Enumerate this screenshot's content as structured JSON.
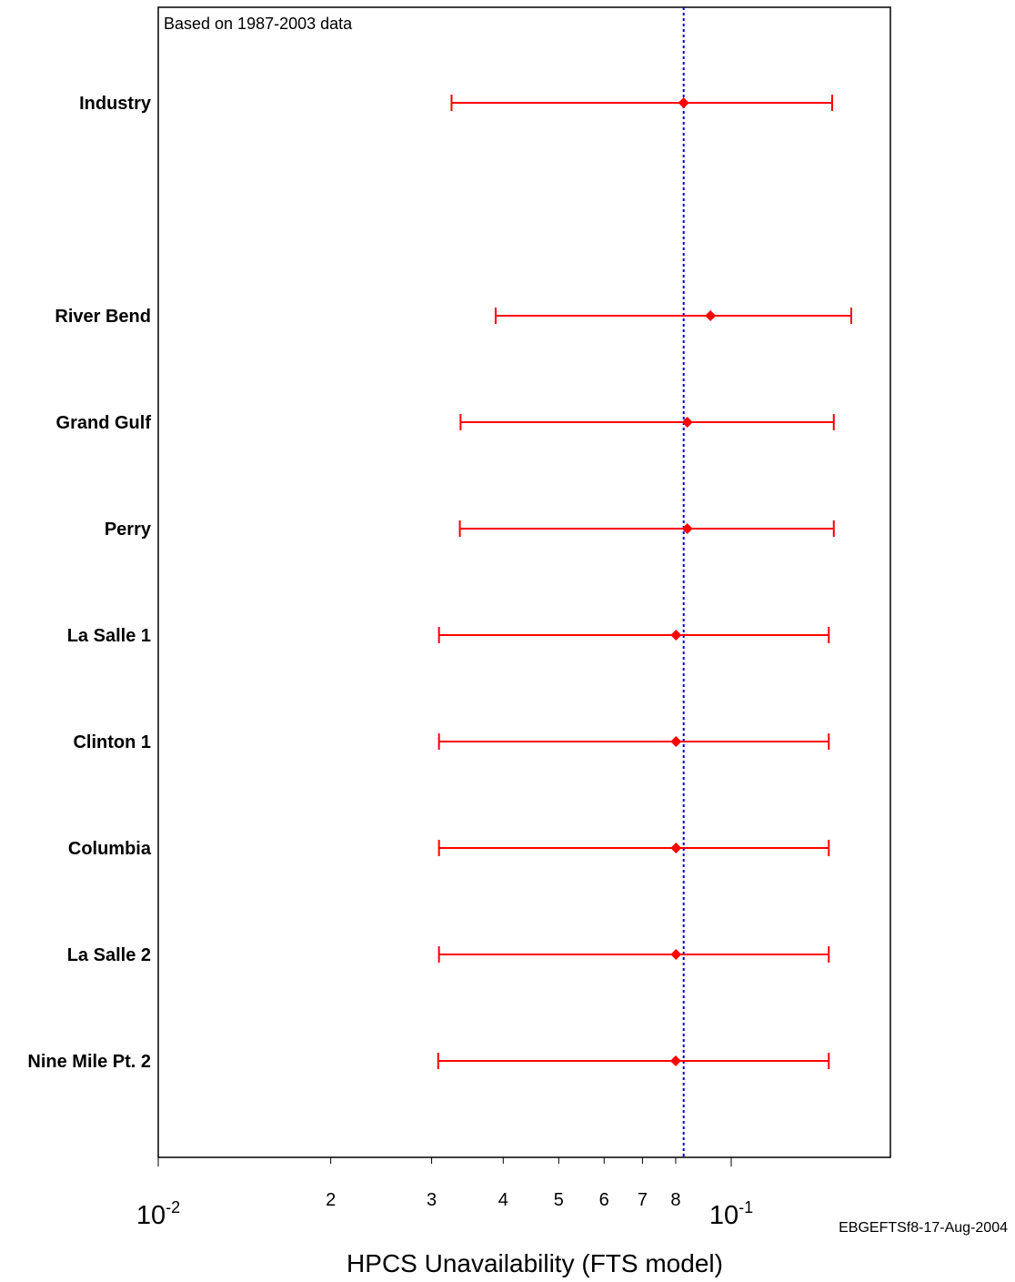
{
  "chart_data": {
    "type": "forest",
    "annotation": "Based on 1987-2003 data",
    "xlabel": "HPCS Unavailability (FTS model)",
    "footnote": "EBGEFTSf8-17-Aug-2004",
    "x_scale": "log",
    "xlim": [
      0.01,
      0.2
    ],
    "reference_line": 0.0826,
    "x_ticks": [
      {
        "value": 0.02,
        "label": "2"
      },
      {
        "value": 0.03,
        "label": "3"
      },
      {
        "value": 0.04,
        "label": "4"
      },
      {
        "value": 0.05,
        "label": "5"
      },
      {
        "value": 0.06,
        "label": "6"
      },
      {
        "value": 0.07,
        "label": "7"
      },
      {
        "value": 0.08,
        "label": "8"
      }
    ],
    "decade_labels": [
      {
        "value": 0.01,
        "base": "10",
        "exp": "-2"
      },
      {
        "value": 0.1,
        "base": "10",
        "exp": "-1"
      }
    ],
    "colors": {
      "interval": "#ff0000",
      "reference": "#0000cc",
      "frame": "#000000"
    },
    "series": [
      {
        "category": "Industry",
        "lower": 0.0325,
        "point": 0.0826,
        "upper": 0.15
      },
      {
        "category": "River Bend",
        "lower": 0.0388,
        "point": 0.092,
        "upper": 0.162
      },
      {
        "category": "Grand Gulf",
        "lower": 0.0337,
        "point": 0.0838,
        "upper": 0.151
      },
      {
        "category": "Perry",
        "lower": 0.0336,
        "point": 0.0838,
        "upper": 0.151
      },
      {
        "category": "La Salle 1",
        "lower": 0.0309,
        "point": 0.0801,
        "upper": 0.148
      },
      {
        "category": "Clinton 1",
        "lower": 0.0309,
        "point": 0.0801,
        "upper": 0.148
      },
      {
        "category": "Columbia",
        "lower": 0.0309,
        "point": 0.0801,
        "upper": 0.148
      },
      {
        "category": "La Salle 2",
        "lower": 0.0309,
        "point": 0.0801,
        "upper": 0.148
      },
      {
        "category": "Nine Mile Pt. 2",
        "lower": 0.0308,
        "point": 0.08,
        "upper": 0.148
      }
    ]
  }
}
